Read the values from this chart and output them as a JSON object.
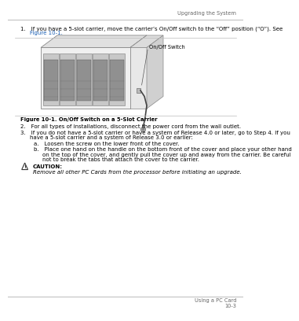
{
  "header_text": "Upgrading the System",
  "footer_left": "Using a PC Card",
  "footer_page": "10-3",
  "step1_line1": "1. If you have a 5-slot carrier, move the carrier’s On/Off switch to the “Off” position (“O”). See",
  "step1_line2": "Figure 10-1.",
  "figure_label": "Figure 10-1. On/Off Switch on a 5-Slot Carrier",
  "onoff_label_text": "On/Off Switch",
  "item2": "2. For all types of installations, disconnect the power cord from the wall outlet.",
  "item3_line1": "3. If you do not have a 5-slot carrier or have a system of Release 4.0 or later, go to Step 4. If you",
  "item3_line2": "have a 5-slot carrier and a system of Release 3.0 or earlier:",
  "item_a": "a. Loosen the screw on the lower front of the cover.",
  "item_b_line1": "b. Place one hand on the handle on the bottom front of the cover and place your other hand",
  "item_b_line2": "on the top of the cover, and gently pull the cover up and away from the carrier. Be careful",
  "item_b_line3": "not to break the tabs that attach the cover to the carrier.",
  "caution_label": "CAUTION:",
  "caution_body": "Remove all other PC Cards from the processor before initiating an upgrade.",
  "bg_color": "#ffffff",
  "text_color": "#000000",
  "line_color": "#bbbbbb",
  "header_color": "#666666",
  "blue_color": "#1a5fb4",
  "fontsize_body": 5.0,
  "fontsize_header": 4.8
}
